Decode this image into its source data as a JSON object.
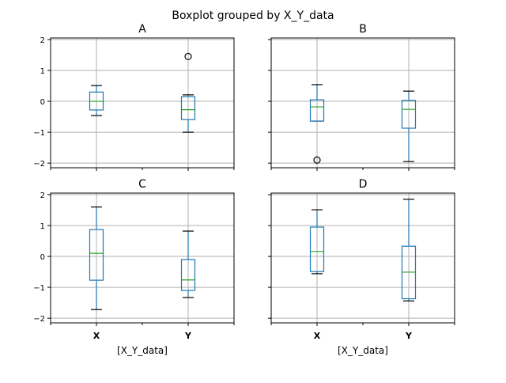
{
  "chart_data": {
    "type": "box",
    "title": "Boxplot grouped by X_Y_data",
    "xlabel": "[X_Y_data]",
    "categories": [
      "X",
      "Y"
    ],
    "ylim": [
      -2.15,
      2.05
    ],
    "yticks": [
      "2",
      "1",
      "0",
      "−1",
      "−2"
    ],
    "ytick_values": [
      2,
      1,
      0,
      -1,
      -2
    ],
    "grid": true,
    "colors": {
      "box": "#1f77b4",
      "median": "#2ca02c",
      "whisker_cap": "#000000"
    },
    "subplots": [
      {
        "title": "A",
        "boxes": [
          {
            "category": "X",
            "whislo": -0.46,
            "q1": -0.28,
            "median": 0.0,
            "q3": 0.3,
            "whishi": 0.51,
            "fliers": []
          },
          {
            "category": "Y",
            "whislo": -1.0,
            "q1": -0.59,
            "median": -0.27,
            "q3": 0.15,
            "whishi": 0.21,
            "fliers": [
              1.45
            ]
          }
        ]
      },
      {
        "title": "B",
        "boxes": [
          {
            "category": "X",
            "whislo": -0.64,
            "q1": -0.64,
            "median": -0.18,
            "q3": 0.05,
            "whishi": 0.54,
            "fliers": [
              -1.9
            ]
          },
          {
            "category": "Y",
            "whislo": -1.95,
            "q1": -0.87,
            "median": -0.26,
            "q3": 0.03,
            "whishi": 0.33,
            "fliers": []
          }
        ]
      },
      {
        "title": "C",
        "boxes": [
          {
            "category": "X",
            "whislo": -1.72,
            "q1": -0.77,
            "median": 0.1,
            "q3": 0.87,
            "whishi": 1.6,
            "fliers": []
          },
          {
            "category": "Y",
            "whislo": -1.33,
            "q1": -1.1,
            "median": -0.76,
            "q3": -0.1,
            "whishi": 0.82,
            "fliers": []
          }
        ]
      },
      {
        "title": "D",
        "boxes": [
          {
            "category": "X",
            "whislo": -0.56,
            "q1": -0.49,
            "median": 0.16,
            "q3": 0.95,
            "whishi": 1.51,
            "fliers": []
          },
          {
            "category": "Y",
            "whislo": -1.44,
            "q1": -1.37,
            "median": -0.51,
            "q3": 0.33,
            "whishi": 1.85,
            "fliers": []
          }
        ]
      }
    ]
  }
}
